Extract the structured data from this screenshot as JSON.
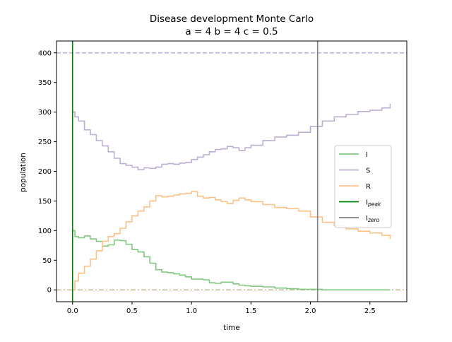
{
  "chart_data": {
    "type": "line",
    "title": "Disease development Monte Carlo",
    "subtitle": "a = 4   b = 4   c = 0.5",
    "xlabel": "time",
    "ylabel": "population",
    "xlim": [
      -0.135,
      2.81
    ],
    "ylim": [
      -20,
      420
    ],
    "x_ticks": [
      0.0,
      0.5,
      1.0,
      1.5,
      2.0,
      2.5
    ],
    "x_tick_labels": [
      "0.0",
      "0.5",
      "1.0",
      "1.5",
      "2.0",
      "2.5"
    ],
    "y_ticks": [
      0,
      50,
      100,
      150,
      200,
      250,
      300,
      350,
      400
    ],
    "y_tick_labels": [
      "0",
      "50",
      "100",
      "150",
      "200",
      "250",
      "300",
      "350",
      "400"
    ],
    "grid": false,
    "legend_position": "center-right",
    "series": [
      {
        "name": "I",
        "color": "#7fc97f",
        "x": [
          0.0,
          0.02,
          0.05,
          0.1,
          0.15,
          0.2,
          0.25,
          0.3,
          0.35,
          0.4,
          0.45,
          0.5,
          0.55,
          0.6,
          0.65,
          0.7,
          0.75,
          0.8,
          0.85,
          0.9,
          0.95,
          1.0,
          1.05,
          1.1,
          1.15,
          1.2,
          1.25,
          1.3,
          1.35,
          1.4,
          1.45,
          1.5,
          1.6,
          1.7,
          1.8,
          1.9,
          2.0,
          2.1,
          2.2,
          2.3,
          2.4,
          2.5,
          2.6,
          2.67
        ],
        "values": [
          100,
          90,
          88,
          91,
          86,
          82,
          74,
          76,
          84,
          83,
          77,
          68,
          64,
          56,
          45,
          34,
          30,
          29,
          27,
          25,
          22,
          18,
          18,
          17,
          12,
          11,
          13,
          13,
          10,
          8,
          7,
          6,
          5,
          3,
          2,
          1,
          1,
          0,
          0,
          0,
          0,
          0,
          0,
          0
        ]
      },
      {
        "name": "S",
        "color": "#beaed4",
        "x": [
          0.0,
          0.02,
          0.05,
          0.1,
          0.15,
          0.2,
          0.25,
          0.3,
          0.35,
          0.4,
          0.45,
          0.5,
          0.55,
          0.6,
          0.65,
          0.7,
          0.75,
          0.8,
          0.85,
          0.9,
          0.95,
          1.0,
          1.05,
          1.1,
          1.15,
          1.2,
          1.25,
          1.3,
          1.35,
          1.4,
          1.45,
          1.5,
          1.6,
          1.7,
          1.8,
          1.9,
          2.0,
          2.1,
          2.2,
          2.3,
          2.4,
          2.5,
          2.6,
          2.67
        ],
        "values": [
          300,
          292,
          285,
          270,
          262,
          252,
          243,
          233,
          222,
          213,
          210,
          207,
          203,
          206,
          205,
          207,
          212,
          213,
          212,
          214,
          215,
          220,
          224,
          228,
          233,
          237,
          238,
          242,
          240,
          235,
          240,
          244,
          252,
          258,
          261,
          266,
          276,
          285,
          292,
          296,
          301,
          303,
          307,
          314
        ]
      },
      {
        "name": "R",
        "color": "#fdc086",
        "x": [
          0.0,
          0.02,
          0.05,
          0.1,
          0.15,
          0.2,
          0.25,
          0.3,
          0.35,
          0.4,
          0.45,
          0.5,
          0.55,
          0.6,
          0.65,
          0.7,
          0.75,
          0.8,
          0.85,
          0.9,
          0.95,
          1.0,
          1.05,
          1.1,
          1.15,
          1.2,
          1.25,
          1.3,
          1.35,
          1.4,
          1.45,
          1.5,
          1.6,
          1.7,
          1.8,
          1.9,
          2.0,
          2.1,
          2.2,
          2.3,
          2.4,
          2.5,
          2.6,
          2.67
        ],
        "values": [
          0,
          15,
          28,
          40,
          52,
          66,
          82,
          90,
          95,
          104,
          115,
          125,
          133,
          140,
          150,
          159,
          157,
          158,
          160,
          162,
          163,
          166,
          158,
          155,
          156,
          152,
          149,
          146,
          151,
          155,
          152,
          149,
          144,
          139,
          137,
          133,
          123,
          114,
          108,
          103,
          99,
          96,
          92,
          86
        ]
      }
    ],
    "reference_lines": [
      {
        "name": "I_peak",
        "legend_label": "I",
        "legend_subscript": "peak",
        "orientation": "vertical",
        "value": 0.0,
        "color": "#008000",
        "style": "solid"
      },
      {
        "name": "I_zero",
        "legend_label": "I",
        "legend_subscript": "zero",
        "orientation": "vertical",
        "value": 2.06,
        "color": "#808080",
        "style": "solid"
      },
      {
        "name": "total-population",
        "orientation": "horizontal",
        "value": 400,
        "color": "#beaed4",
        "style": "dashed"
      },
      {
        "name": "zero-level",
        "orientation": "horizontal",
        "value": 0,
        "color": "#c4b98a",
        "style": "dashdot"
      }
    ]
  }
}
